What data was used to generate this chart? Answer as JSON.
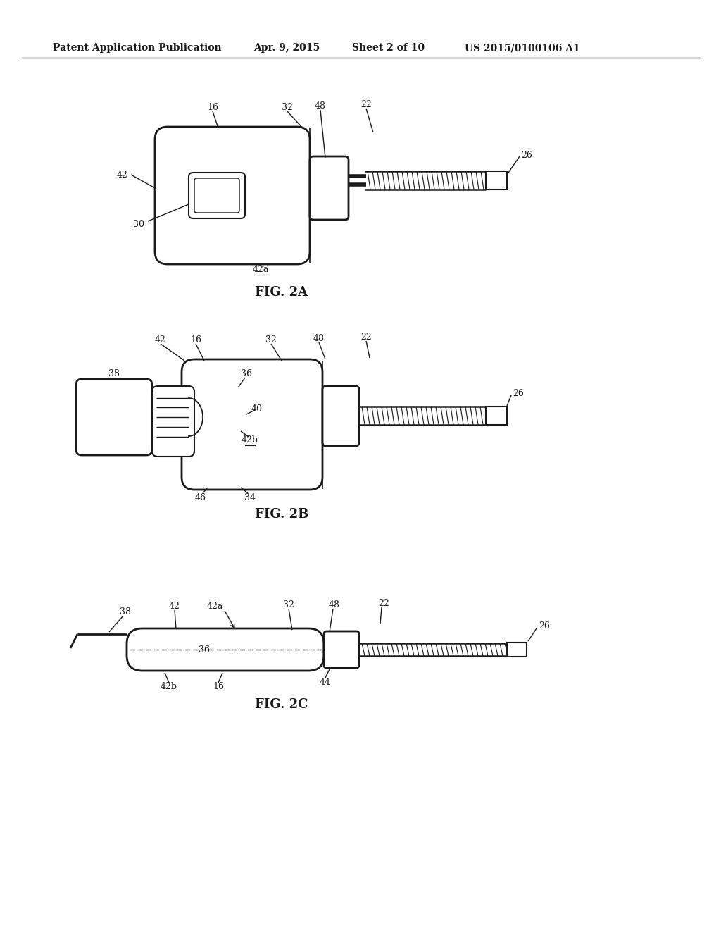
{
  "bg_color": "#ffffff",
  "line_color": "#1a1a1a",
  "header_text": "Patent Application Publication",
  "header_date": "Apr. 9, 2015",
  "header_sheet": "Sheet 2 of 10",
  "header_patent": "US 2015/0100106 A1",
  "fig2a_label": "FIG. 2A",
  "fig2b_label": "FIG. 2B",
  "fig2c_label": "FIG. 2C"
}
